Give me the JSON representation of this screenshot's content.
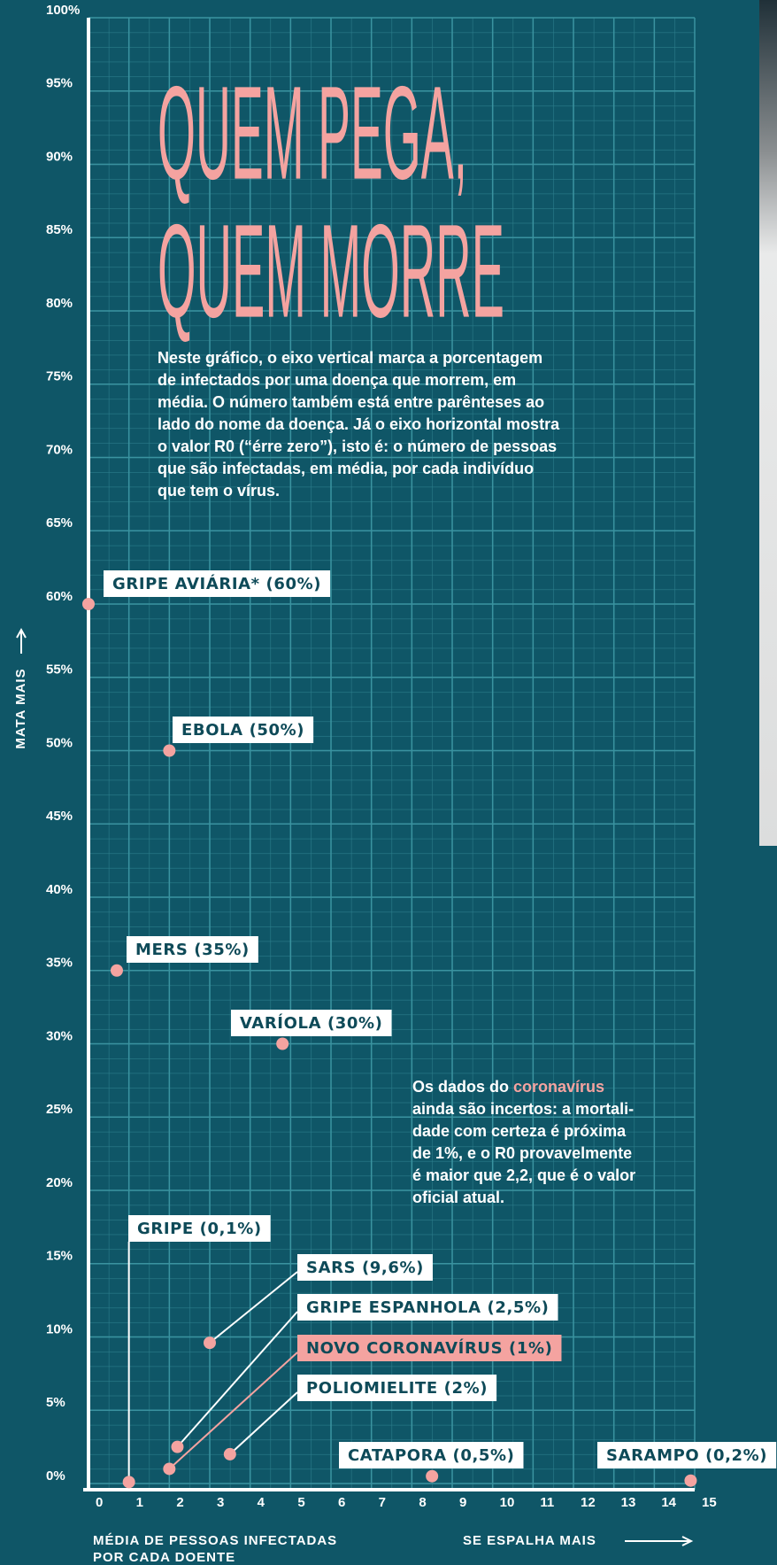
{
  "chart_data": {
    "type": "scatter",
    "title": [
      "QUEM PEGA,",
      "QUEM MORRE"
    ],
    "description": [
      "Neste gráfico, o eixo vertical marca a porcentagem",
      "de infectados por uma doença que morrem, em",
      "média. O número também está entre parênteses ao",
      "lado do nome da doença.  Já o eixo horizontal mostra",
      "o valor R0 (“érre zero”), isto é: o número de pessoas",
      "que são infectadas, em média, por cada indivíduo",
      "que tem o vírus."
    ],
    "note": {
      "lead": "Os dados do",
      "highlight": "coronavírus",
      "lines": [
        "ainda são incertos: a mortali-",
        "dade com certeza é próxima",
        "de 1%, e o R0 provavelmente",
        "é maior que 2,2, que é o valor",
        "oficial atual."
      ]
    },
    "y_label": "MATA MAIS",
    "x_label": [
      "MÉDIA DE PESSOAS INFECTADAS",
      "POR CADA DOENTE"
    ],
    "x_label_right": "SE ESPALHA MAIS",
    "series": [
      {
        "color": "#f4a3a0",
        "x": [
          0,
          2,
          0.7,
          4.8,
          1,
          3,
          2.2,
          2,
          3.5,
          8.5,
          14.9
        ],
        "values": [
          60,
          50,
          35,
          30,
          0.1,
          9.6,
          2.5,
          1,
          2,
          0.5,
          0.2
        ],
        "labels": [
          "GRIPE AVIÁRIA* (60%)",
          "EBOLA (50%)",
          "MERS (35%)",
          "VARÍOLA (30%)",
          "GRIPE (0,1%)",
          "SARS (9,6%)",
          "GRIPE ESPANHOLA (2,5%)",
          "NOVO CORONAVÍRUS (1%)",
          "POLIOMIELITE (2%)",
          "CATAPORA (0,5%)",
          "SARAMPO (0,2%)"
        ],
        "highlight": 7
      }
    ],
    "highlight_color": "#f4a3a0",
    "xlim": [
      0,
      15
    ],
    "ylim": [
      0,
      100
    ],
    "xticks": [
      0,
      1,
      2,
      3,
      4,
      5,
      6,
      7,
      8,
      9,
      10,
      11,
      12,
      13,
      14,
      15
    ],
    "yticks": [
      {
        "value": 0,
        "label": "0%"
      },
      {
        "value": 5,
        "label": "5%"
      },
      {
        "value": 10,
        "label": "10%"
      },
      {
        "value": 15,
        "label": "15%"
      },
      {
        "value": 20,
        "label": "20%"
      },
      {
        "value": 25,
        "label": "25%"
      },
      {
        "value": 30,
        "label": "30%"
      },
      {
        "value": 35,
        "label": "35%"
      },
      {
        "value": 40,
        "label": "40%"
      },
      {
        "value": 45,
        "label": "45%"
      },
      {
        "value": 50,
        "label": "50%"
      },
      {
        "value": 55,
        "label": "55%"
      },
      {
        "value": 60,
        "label": "60%"
      },
      {
        "value": 65,
        "label": "65%"
      },
      {
        "value": 70,
        "label": "70%"
      },
      {
        "value": 75,
        "label": "75%"
      },
      {
        "value": 80,
        "label": "80%"
      },
      {
        "value": 85,
        "label": "85%"
      },
      {
        "value": 90,
        "label": "90%"
      },
      {
        "value": 95,
        "label": "95%"
      },
      {
        "value": 100,
        "label": "100%"
      }
    ],
    "grid": true
  }
}
